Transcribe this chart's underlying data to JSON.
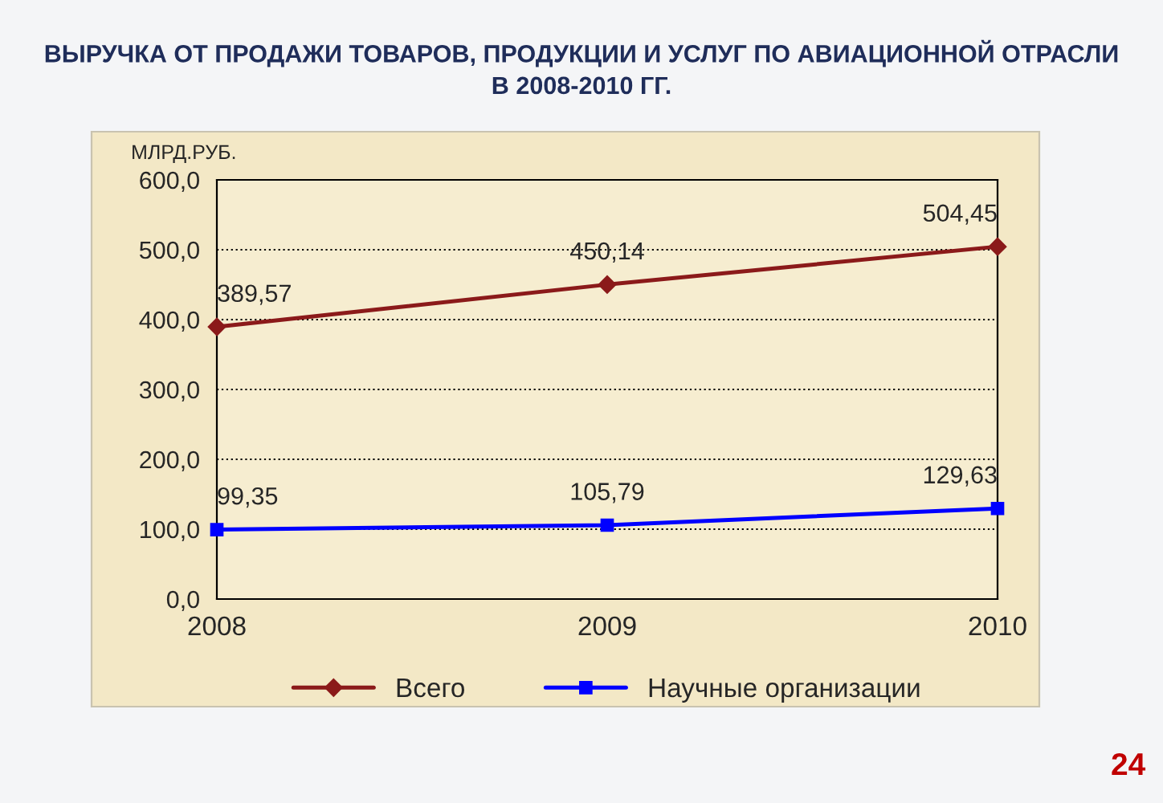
{
  "chart_data": {
    "type": "line",
    "title": "ВЫРУЧКА ОТ ПРОДАЖИ ТОВАРОВ, ПРОДУКЦИИ И УСЛУГ ПО АВИАЦИОННОЙ ОТРАСЛИ\nВ 2008-2010 ГГ.",
    "ylabel": "МЛРД.РУБ.",
    "categories": [
      "2008",
      "2009",
      "2010"
    ],
    "series": [
      {
        "name": "Всего",
        "color": "#8b1a1a",
        "marker": "diamond",
        "values": [
          389.57,
          450.14,
          504.45
        ],
        "value_labels": [
          "389,57",
          "450,14",
          "504,45"
        ]
      },
      {
        "name": "Научные организации",
        "color": "#0000ff",
        "marker": "square",
        "values": [
          99.35,
          105.79,
          129.63
        ],
        "value_labels": [
          "99,35",
          "105,79",
          "129,63"
        ]
      }
    ],
    "ylim": [
      0,
      600
    ],
    "yticks": [
      {
        "value": 0,
        "label": "0,0"
      },
      {
        "value": 100,
        "label": "100,0"
      },
      {
        "value": 200,
        "label": "200,0"
      },
      {
        "value": 300,
        "label": "300,0"
      },
      {
        "value": 400,
        "label": "400,0"
      },
      {
        "value": 500,
        "label": "500,0"
      },
      {
        "value": 600,
        "label": "600,0"
      }
    ],
    "grid": "y",
    "legend": "bottom",
    "line_style": "solid",
    "annotations": [
      "24"
    ]
  }
}
